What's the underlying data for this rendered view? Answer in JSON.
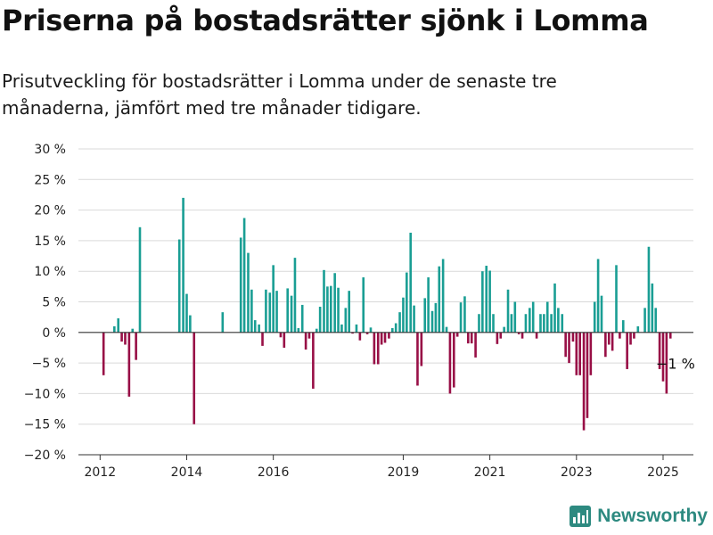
{
  "title": "Priserna på bostadsrätter sjönk i Lomma",
  "subtitle": "Prisutveckling för bostadsrätter i Lomma under de senaste tre månaderna, jämfört med tre månader tidigare.",
  "brand": "Newsworthy",
  "colors": {
    "positive": "#1a9e94",
    "negative": "#980f46",
    "grid": "#d9d9d9",
    "axis": "#333333"
  },
  "chart_data": {
    "type": "bar",
    "xlabel": "",
    "ylabel": "",
    "ylim": [
      -20,
      30
    ],
    "yticks": [
      -20,
      -15,
      -10,
      -5,
      0,
      5,
      10,
      15,
      20,
      25,
      30
    ],
    "ytick_labels": [
      "−20 %",
      "−15 %",
      "−10 %",
      "−5 %",
      "0 %",
      "5 %",
      "10 %",
      "15 %",
      "20 %",
      "25 %",
      "30 %"
    ],
    "xlim": [
      2011.5,
      2025.7
    ],
    "xticks": [
      2012,
      2014,
      2016,
      2019,
      2021,
      2023,
      2025
    ],
    "xtick_labels": [
      "2012",
      "2014",
      "2016",
      "2019",
      "2021",
      "2023",
      "2025"
    ],
    "grid": true,
    "annotation": {
      "text": "−1 %",
      "x": 2025.0,
      "y": -1
    },
    "x": [
      2012.08,
      2012.33,
      2012.42,
      2012.5,
      2012.58,
      2012.67,
      2012.75,
      2012.83,
      2012.92,
      2013.83,
      2013.92,
      2014.0,
      2014.08,
      2014.17,
      2014.83,
      2015.25,
      2015.33,
      2015.42,
      2015.5,
      2015.58,
      2015.67,
      2015.75,
      2015.83,
      2015.92,
      2016.0,
      2016.08,
      2016.17,
      2016.25,
      2016.33,
      2016.42,
      2016.5,
      2016.58,
      2016.67,
      2016.75,
      2016.83,
      2016.92,
      2017.0,
      2017.08,
      2017.17,
      2017.25,
      2017.33,
      2017.42,
      2017.5,
      2017.58,
      2017.67,
      2017.75,
      2017.83,
      2017.92,
      2018.0,
      2018.08,
      2018.17,
      2018.25,
      2018.33,
      2018.42,
      2018.5,
      2018.58,
      2018.67,
      2018.75,
      2018.83,
      2018.92,
      2019.0,
      2019.08,
      2019.17,
      2019.25,
      2019.33,
      2019.42,
      2019.5,
      2019.58,
      2019.67,
      2019.75,
      2019.83,
      2019.92,
      2020.0,
      2020.08,
      2020.17,
      2020.25,
      2020.33,
      2020.42,
      2020.5,
      2020.58,
      2020.67,
      2020.75,
      2020.83,
      2020.92,
      2021.0,
      2021.08,
      2021.17,
      2021.25,
      2021.33,
      2021.42,
      2021.5,
      2021.58,
      2021.67,
      2021.75,
      2021.83,
      2021.92,
      2022.0,
      2022.08,
      2022.17,
      2022.25,
      2022.33,
      2022.42,
      2022.5,
      2022.58,
      2022.67,
      2022.75,
      2022.83,
      2022.92,
      2023.0,
      2023.08,
      2023.17,
      2023.25,
      2023.33,
      2023.42,
      2023.5,
      2023.58,
      2023.67,
      2023.75,
      2023.83,
      2023.92,
      2024.0,
      2024.08,
      2024.17,
      2024.25,
      2024.33,
      2024.42,
      2024.5,
      2024.58,
      2024.67,
      2024.75,
      2024.83,
      2024.92,
      2025.0,
      2025.08,
      2025.17
    ],
    "values": [
      -7,
      1,
      2.3,
      -1.5,
      -2,
      -10.5,
      0.6,
      -4.5,
      17.2,
      15.2,
      22,
      6.3,
      2.8,
      -15,
      3.3,
      15.5,
      18.7,
      13,
      7,
      2,
      1.3,
      -2.2,
      7,
      6.5,
      11,
      6.8,
      -0.8,
      -2.5,
      7.2,
      6,
      12.2,
      0.7,
      4.5,
      -2.8,
      -1,
      -9.2,
      0.6,
      4.2,
      10.2,
      7.5,
      7.6,
      9.7,
      7.3,
      1.3,
      4,
      6.8,
      -0.2,
      1.3,
      -1.3,
      9,
      -0.3,
      0.8,
      -5.2,
      -5.2,
      -2,
      -1.7,
      -1,
      0.7,
      1.5,
      3.3,
      5.7,
      9.8,
      16.3,
      4.4,
      -8.7,
      -5.5,
      5.6,
      9,
      3.5,
      4.8,
      10.8,
      12,
      0.9,
      -10,
      -9,
      -0.7,
      4.9,
      5.9,
      -1.8,
      -1.8,
      -4.1,
      3,
      10,
      10.9,
      10.1,
      3,
      -1.9,
      -1,
      0.9,
      7,
      3,
      5,
      -0.3,
      -1,
      3,
      4,
      5,
      -1,
      3,
      3,
      5,
      3,
      8,
      4,
      3,
      -4,
      -5,
      -1.5,
      -7,
      -7,
      -16,
      -14,
      -7,
      5,
      12,
      6,
      -4,
      -2,
      -3,
      11,
      -1,
      2,
      -6,
      -2,
      -1,
      1,
      0,
      4,
      14,
      8,
      4,
      -6,
      -8,
      -10,
      -1
    ]
  }
}
